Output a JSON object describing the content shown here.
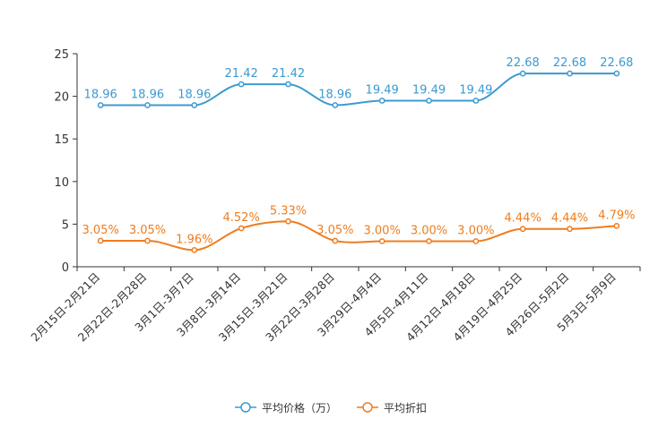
{
  "chart_data": {
    "type": "line",
    "categories": [
      "2月15日-2月21日",
      "2月22日-2月28日",
      "3月1日-3月7日",
      "3月8日-3月14日",
      "3月15日-3月21日",
      "3月22日-3月28日",
      "3月29日-4月4日",
      "4月5日-4月11日",
      "4月12日-4月18日",
      "4月19日-4月25日",
      "4月26日-5月2日",
      "5月3日-5月9日"
    ],
    "ylim": [
      0,
      25
    ],
    "yticks": [
      0,
      5,
      10,
      15,
      20,
      25
    ],
    "series": [
      {
        "name": "平均价格（万）",
        "values": [
          18.96,
          18.96,
          18.96,
          21.42,
          21.42,
          18.96,
          19.49,
          19.49,
          19.49,
          22.68,
          22.68,
          22.68
        ],
        "labels": [
          "18.96",
          "18.96",
          "18.96",
          "21.42",
          "21.42",
          "18.96",
          "19.49",
          "19.49",
          "19.49",
          "22.68",
          "22.68",
          "22.68"
        ],
        "color": "#3b9ad0"
      },
      {
        "name": "平均折扣",
        "values": [
          3.05,
          3.05,
          1.96,
          4.52,
          5.33,
          3.05,
          3.0,
          3.0,
          3.0,
          4.44,
          4.44,
          4.79
        ],
        "labels": [
          "3.05%",
          "3.05%",
          "1.96%",
          "4.52%",
          "5.33%",
          "3.05%",
          "3.00%",
          "3.00%",
          "3.00%",
          "4.44%",
          "4.44%",
          "4.79%"
        ],
        "color": "#f07c1e"
      }
    ]
  }
}
